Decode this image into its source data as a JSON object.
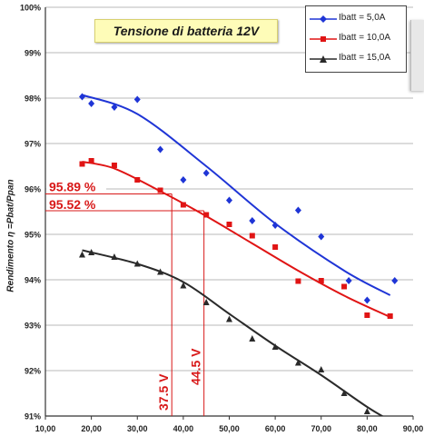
{
  "chart_data": {
    "type": "scatter",
    "title": "Tensione di batteria 12V",
    "ylabel": "Rendimento η =Pbat/Ppan",
    "xlim": [
      10,
      90
    ],
    "ylim": [
      91,
      100
    ],
    "x_ticks": [
      "10,00",
      "20,00",
      "30,00",
      "40,00",
      "50,00",
      "60,00",
      "70,00",
      "80,00",
      "90,00"
    ],
    "y_ticks": [
      "91%",
      "92%",
      "93%",
      "94%",
      "95%",
      "96%",
      "97%",
      "98%",
      "99%",
      "100%"
    ],
    "legend_position": "top-right",
    "series": [
      {
        "name": "Ibatt = 5,0A",
        "color": "#1f35d6",
        "marker": "diamond",
        "x": [
          18,
          20,
          25,
          30,
          35,
          40,
          45,
          50,
          55,
          60,
          65,
          70,
          76,
          80,
          86
        ],
        "y": [
          98.03,
          97.88,
          97.8,
          97.97,
          96.87,
          96.2,
          96.35,
          95.75,
          95.3,
          95.2,
          95.53,
          94.95,
          93.98,
          93.55,
          93.98
        ],
        "trend": {
          "x": [
            18,
            30,
            45,
            60,
            75,
            85
          ],
          "y": [
            98.07,
            97.65,
            96.5,
            95.24,
            94.2,
            93.66
          ]
        }
      },
      {
        "name": "Ibatt = 10,0A",
        "color": "#e01414",
        "marker": "square",
        "x": [
          18,
          20,
          25,
          30,
          35,
          40,
          45,
          50,
          55,
          60,
          65,
          70,
          75,
          80,
          85
        ],
        "y": [
          96.55,
          96.62,
          96.52,
          96.2,
          95.97,
          95.65,
          95.43,
          95.22,
          94.97,
          94.72,
          93.97,
          93.98,
          93.85,
          93.22,
          93.2
        ],
        "trend": {
          "x": [
            18,
            25,
            35,
            45,
            55,
            65,
            75,
            85
          ],
          "y": [
            96.6,
            96.45,
            95.95,
            95.4,
            94.8,
            94.2,
            93.65,
            93.18
          ]
        }
      },
      {
        "name": "Ibatt = 15,0A",
        "color": "#2a2a2a",
        "marker": "triangle",
        "x": [
          18,
          20,
          25,
          30,
          35,
          40,
          45,
          50,
          55,
          60,
          65,
          70,
          75,
          80
        ],
        "y": [
          94.55,
          94.6,
          94.5,
          94.35,
          94.17,
          93.87,
          93.5,
          93.13,
          92.7,
          92.52,
          92.17,
          92.02,
          91.5,
          91.1
        ],
        "trend": {
          "x": [
            18,
            30,
            40,
            50,
            60,
            70,
            80,
            85
          ],
          "y": [
            94.65,
            94.35,
            93.95,
            93.25,
            92.55,
            91.9,
            91.2,
            90.9
          ]
        }
      }
    ],
    "annotations": [
      {
        "text": "95.89 %",
        "y": 95.89,
        "x_end": 37.5
      },
      {
        "text": "95.52 %",
        "y": 95.52,
        "x_end": 44.5
      },
      {
        "text": "37.5 V",
        "x": 37.5,
        "y_end": 95.89
      },
      {
        "text": "44.5 V",
        "x": 44.5,
        "y_end": 95.52
      }
    ],
    "annotation_color": "#d81818"
  }
}
